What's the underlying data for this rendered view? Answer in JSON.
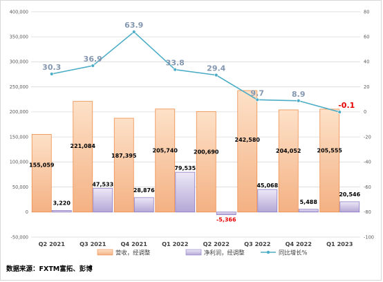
{
  "chart_data": {
    "type": "bar",
    "categories": [
      "Q2 2021",
      "Q3 2021",
      "Q4 2021",
      "Q1 2022",
      "Q2 2022",
      "Q3 2022",
      "Q4 2022",
      "Q1 2023"
    ],
    "series": [
      {
        "name": "营收，经调整",
        "type": "bar",
        "axis": "left",
        "values": [
          155059,
          221084,
          187395,
          205740,
          200690,
          242580,
          204052,
          205555
        ],
        "labels": [
          "155,059",
          "221,084",
          "187,395",
          "205,740",
          "200,690",
          "242,580",
          "204,052",
          "205,555"
        ],
        "color": "#f4b183"
      },
      {
        "name": "净利润，经调整",
        "type": "bar",
        "axis": "left",
        "values": [
          3220,
          47533,
          28876,
          79535,
          -5366,
          45068,
          5488,
          20546
        ],
        "labels": [
          "3,220",
          "47,533",
          "28,876",
          "79,535",
          "-5,366",
          "45,068",
          "5,488",
          "20,546"
        ],
        "color": "#b4a7d6"
      },
      {
        "name": "同比增长%",
        "type": "line",
        "axis": "right",
        "values": [
          30.3,
          36.9,
          63.9,
          33.8,
          29.4,
          9.7,
          8.9,
          -0.1
        ],
        "labels": [
          "30.3",
          "36.9",
          "63.9",
          "33.8",
          "29.4",
          "9.7",
          "8.9",
          "-0.1"
        ],
        "color": "#4bacc6"
      }
    ],
    "y_left": {
      "min": -50000,
      "max": 400000,
      "step": 50000,
      "tick_labels": [
        "-50,000",
        "0",
        "50,000",
        "100,000",
        "150,000",
        "200,000",
        "250,000",
        "300,000",
        "350,000",
        "400,000"
      ]
    },
    "y_right": {
      "min": -100,
      "max": 80,
      "step": 20,
      "tick_labels": [
        "-100",
        "-80",
        "-60",
        "-40",
        "-20",
        "0",
        "20",
        "40",
        "60",
        "80"
      ]
    },
    "grid": true,
    "legend_position": "bottom"
  },
  "source_text": "数据来源：FXTM富拓、彭博"
}
